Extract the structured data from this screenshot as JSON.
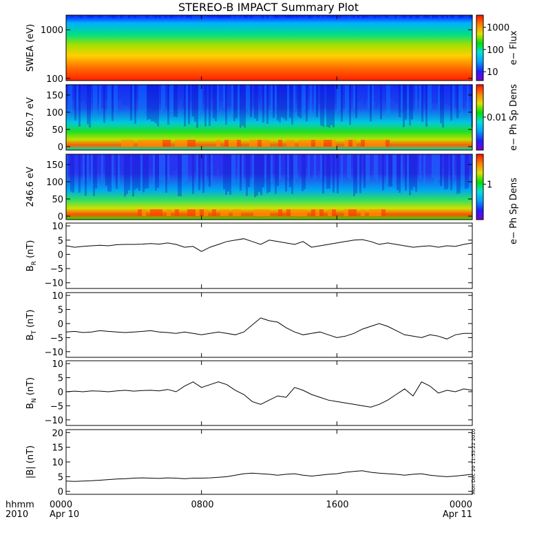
{
  "title": "STEREO-B IMPACT Summary Plot",
  "stamp": "Mon Dec 20 11:53:22 2010",
  "x_axis": {
    "row1": [
      "hhmm",
      "0000",
      "0800",
      "1600",
      "0000"
    ],
    "row2": [
      "2010",
      "Apr 10",
      "Apr 11"
    ],
    "range_hours": [
      0,
      24
    ],
    "ticks_hours": [
      0,
      8,
      16,
      24
    ],
    "tick_labels": [
      "0000",
      "0800",
      "1600",
      "0000"
    ]
  },
  "chart_data": [
    {
      "type": "heatmap",
      "ylabel": "SWEA (eV)",
      "y_scale": "log",
      "ylim": [
        90,
        2000
      ],
      "yticks": [
        100,
        1000
      ],
      "ytick_labels": [
        "100",
        "1000"
      ],
      "colorbar": {
        "label": "e− Flux",
        "scale": "log",
        "ticks": [
          10,
          100,
          1000
        ],
        "tick_labels": [
          "10",
          "100",
          "1000"
        ]
      }
    },
    {
      "type": "heatmap",
      "ylabel": "650.7 eV",
      "ylim": [
        -10,
        180
      ],
      "yticks": [
        0,
        50,
        100,
        150
      ],
      "ytick_labels": [
        "0",
        "50",
        "100",
        "150"
      ],
      "colorbar": {
        "label": "e− Ph Sp Dens",
        "scale": "log",
        "ticks": [
          0.01
        ],
        "tick_labels": [
          "0.01"
        ]
      }
    },
    {
      "type": "heatmap",
      "ylabel": "246.6 eV",
      "ylim": [
        -10,
        180
      ],
      "yticks": [
        0,
        50,
        100,
        150
      ],
      "ytick_labels": [
        "0",
        "50",
        "100",
        "150"
      ],
      "colorbar": {
        "label": "e− Ph Sp Dens",
        "scale": "log",
        "ticks": [
          1
        ],
        "tick_labels": [
          "1"
        ]
      }
    },
    {
      "type": "line",
      "ylabel": "B",
      "ylabel_sub": "R",
      "ylabel_unit": "(nT)",
      "ylim": [
        -12,
        11
      ],
      "yticks": [
        -10,
        -5,
        0,
        5,
        10
      ],
      "ytick_labels": [
        "−10",
        "−5",
        "0",
        "5",
        "10"
      ],
      "series": [
        {
          "x": [
            0,
            0.5,
            1,
            1.5,
            2,
            2.5,
            3,
            3.5,
            4,
            4.5,
            5,
            5.5,
            6,
            6.5,
            7,
            7.5,
            8,
            8.5,
            9,
            9.5,
            10,
            10.5,
            11,
            11.5,
            12,
            12.5,
            13,
            13.5,
            14,
            14.5,
            15,
            15.5,
            16,
            16.5,
            17,
            17.5,
            18,
            18.5,
            19,
            19.5,
            20,
            20.5,
            21,
            21.5,
            22,
            22.5,
            23,
            23.5,
            24
          ],
          "y": [
            3,
            2.5,
            2.8,
            3.0,
            3.2,
            3.0,
            3.4,
            3.5,
            3.5,
            3.6,
            3.8,
            3.6,
            4.0,
            3.5,
            2.5,
            2.8,
            1.0,
            2.5,
            3.5,
            4.5,
            5.0,
            5.5,
            4.5,
            3.5,
            5.0,
            4.5,
            4.0,
            3.5,
            4.5,
            2.5,
            3.0,
            3.5,
            4.0,
            4.5,
            5.0,
            5.2,
            4.5,
            3.5,
            4.0,
            3.5,
            3.0,
            2.5,
            2.8,
            3.0,
            2.5,
            3.0,
            2.8,
            3.5,
            4.0
          ]
        }
      ]
    },
    {
      "type": "line",
      "ylabel": "B",
      "ylabel_sub": "T",
      "ylabel_unit": "(nT)",
      "ylim": [
        -12,
        11
      ],
      "yticks": [
        -10,
        -5,
        0,
        5,
        10
      ],
      "ytick_labels": [
        "−10",
        "−5",
        "0",
        "5",
        "10"
      ],
      "series": [
        {
          "x": [
            0,
            0.5,
            1,
            1.5,
            2,
            2.5,
            3,
            3.5,
            4,
            4.5,
            5,
            5.5,
            6,
            6.5,
            7,
            7.5,
            8,
            8.5,
            9,
            9.5,
            10,
            10.5,
            11,
            11.5,
            12,
            12.5,
            13,
            13.5,
            14,
            14.5,
            15,
            15.5,
            16,
            16.5,
            17,
            17.5,
            18,
            18.5,
            19,
            19.5,
            20,
            20.5,
            21,
            21.5,
            22,
            22.5,
            23,
            23.5,
            24
          ],
          "y": [
            -3,
            -2.8,
            -3.2,
            -3.0,
            -2.5,
            -2.8,
            -3.0,
            -3.2,
            -3.0,
            -2.8,
            -2.5,
            -3.0,
            -3.2,
            -3.5,
            -3.0,
            -3.5,
            -4.0,
            -3.5,
            -3.0,
            -3.5,
            -4.0,
            -3.0,
            -0.5,
            2.0,
            1.0,
            0.5,
            -1.5,
            -3.0,
            -4.0,
            -3.5,
            -3.0,
            -4.0,
            -5.0,
            -4.5,
            -3.5,
            -2.0,
            -1.0,
            0.0,
            -1.0,
            -2.5,
            -4.0,
            -4.5,
            -5.0,
            -4.0,
            -4.5,
            -5.5,
            -4.0,
            -3.5,
            -3.5
          ]
        }
      ]
    },
    {
      "type": "line",
      "ylabel": "B",
      "ylabel_sub": "N",
      "ylabel_unit": "(nT)",
      "ylim": [
        -12,
        11
      ],
      "yticks": [
        -10,
        -5,
        0,
        5,
        10
      ],
      "ytick_labels": [
        "−10",
        "−5",
        "0",
        "5",
        "10"
      ],
      "series": [
        {
          "x": [
            0,
            0.5,
            1,
            1.5,
            2,
            2.5,
            3,
            3.5,
            4,
            4.5,
            5,
            5.5,
            6,
            6.5,
            7,
            7.5,
            8,
            8.5,
            9,
            9.5,
            10,
            10.5,
            11,
            11.5,
            12,
            12.5,
            13,
            13.5,
            14,
            14.5,
            15,
            15.5,
            16,
            16.5,
            17,
            17.5,
            18,
            18.5,
            19,
            19.5,
            20,
            20.5,
            21,
            21.5,
            22,
            22.5,
            23,
            23.5,
            24
          ],
          "y": [
            0,
            0.2,
            0,
            0.3,
            0.2,
            0,
            0.3,
            0.5,
            0.2,
            0.4,
            0.5,
            0.3,
            0.8,
            0,
            2.0,
            3.5,
            1.5,
            2.5,
            3.5,
            2.5,
            0.5,
            -1.0,
            -3.5,
            -4.5,
            -3.0,
            -1.5,
            -2.0,
            1.5,
            0.5,
            -1.0,
            -2.0,
            -3.0,
            -3.5,
            -4.0,
            -4.5,
            -5.0,
            -5.5,
            -4.5,
            -3.0,
            -1.0,
            1.0,
            -1.5,
            3.5,
            2.0,
            -0.5,
            0.5,
            0.0,
            1.0,
            0.5
          ]
        }
      ]
    },
    {
      "type": "line",
      "ylabel": "|B| (nT)",
      "ylim": [
        -1,
        21
      ],
      "yticks": [
        0,
        5,
        10,
        15,
        20
      ],
      "ytick_labels": [
        "0",
        "5",
        "10",
        "15",
        "20"
      ],
      "series": [
        {
          "x": [
            0,
            0.5,
            1,
            1.5,
            2,
            2.5,
            3,
            3.5,
            4,
            4.5,
            5,
            5.5,
            6,
            6.5,
            7,
            7.5,
            8,
            8.5,
            9,
            9.5,
            10,
            10.5,
            11,
            11.5,
            12,
            12.5,
            13,
            13.5,
            14,
            14.5,
            15,
            15.5,
            16,
            16.5,
            17,
            17.5,
            18,
            18.5,
            19,
            19.5,
            20,
            20.5,
            21,
            21.5,
            22,
            22.5,
            23,
            23.5,
            24
          ],
          "y": [
            3.5,
            3.4,
            3.5,
            3.6,
            3.8,
            4.0,
            4.2,
            4.3,
            4.5,
            4.6,
            4.5,
            4.4,
            4.6,
            4.5,
            4.3,
            4.5,
            4.5,
            4.6,
            4.8,
            5.0,
            5.5,
            6.0,
            6.2,
            6.0,
            5.8,
            5.5,
            5.8,
            6.0,
            5.5,
            5.2,
            5.5,
            5.8,
            6.0,
            6.5,
            6.8,
            7.0,
            6.5,
            6.2,
            6.0,
            5.8,
            5.5,
            5.8,
            6.0,
            5.5,
            5.2,
            5.0,
            5.2,
            5.5,
            5.8
          ]
        }
      ]
    }
  ]
}
